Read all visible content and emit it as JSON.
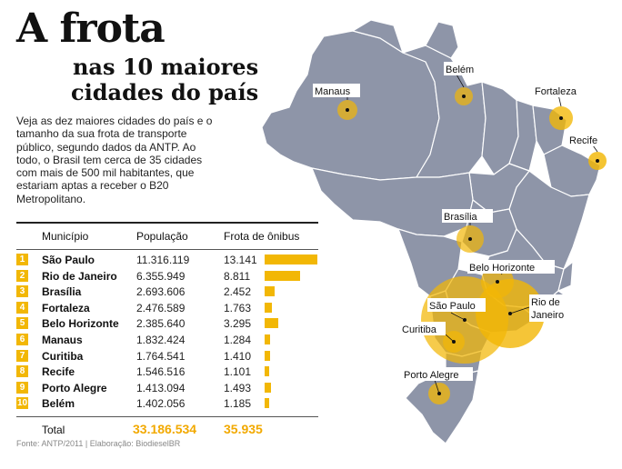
{
  "title": {
    "main": "A frota",
    "sub_line1": "nas 10 maiores",
    "sub_line2": "cidades do país"
  },
  "intro": "Veja as dez maiores cidades do país e o tamanho da sua frota de transporte público, segundo dados da ANTP. Ao todo, o Brasil tem cerca de 35 cidades com mais de 500 mil habitantes, que estariam aptas a receber o B20 Metropolitano.",
  "table": {
    "headers": {
      "city": "Município",
      "population": "População",
      "fleet": "Frota de ônibus"
    },
    "rows": [
      {
        "rank": "1",
        "city": "São Paulo",
        "population": "11.316.119",
        "fleet": "13.141",
        "fleet_value": 13141
      },
      {
        "rank": "2",
        "city": "Rio de Janeiro",
        "population": "6.355.949",
        "fleet": "8.811",
        "fleet_value": 8811
      },
      {
        "rank": "3",
        "city": "Brasília",
        "population": "2.693.606",
        "fleet": "2.452",
        "fleet_value": 2452
      },
      {
        "rank": "4",
        "city": "Fortaleza",
        "population": "2.476.589",
        "fleet": "1.763",
        "fleet_value": 1763
      },
      {
        "rank": "5",
        "city": "Belo Horizonte",
        "population": "2.385.640",
        "fleet": "3.295",
        "fleet_value": 3295
      },
      {
        "rank": "6",
        "city": "Manaus",
        "population": "1.832.424",
        "fleet": "1.284",
        "fleet_value": 1284
      },
      {
        "rank": "7",
        "city": "Curitiba",
        "population": "1.764.541",
        "fleet": "1.410",
        "fleet_value": 1410
      },
      {
        "rank": "8",
        "city": "Recife",
        "population": "1.546.516",
        "fleet": "1.101",
        "fleet_value": 1101
      },
      {
        "rank": "9",
        "city": "Porto Alegre",
        "population": "1.413.094",
        "fleet": "1.493",
        "fleet_value": 1493
      },
      {
        "rank": "10",
        "city": "Belém",
        "population": "1.402.056",
        "fleet": "1.185",
        "fleet_value": 1185
      }
    ],
    "total": {
      "label": "Total",
      "population": "33.186.534",
      "fleet": "35.935"
    }
  },
  "map": {
    "labels": {
      "manaus": "Manaus",
      "belem": "Belém",
      "fortaleza": "Fortaleza",
      "recife": "Recife",
      "brasilia": "Brasília",
      "belo_horizonte": "Belo Horizonte",
      "sao_paulo": "São Paulo",
      "rio_line1": "Rio de",
      "rio_line2": "Janeiro",
      "curitiba": "Curitiba",
      "porto_alegre": "Porto Alegre"
    }
  },
  "source": "Fonte: ANTP/2011 | Elaboração: BiodieselBR",
  "colors": {
    "accent": "#f2b705",
    "map_fill": "#8e95a8",
    "map_border": "#ffffff"
  }
}
